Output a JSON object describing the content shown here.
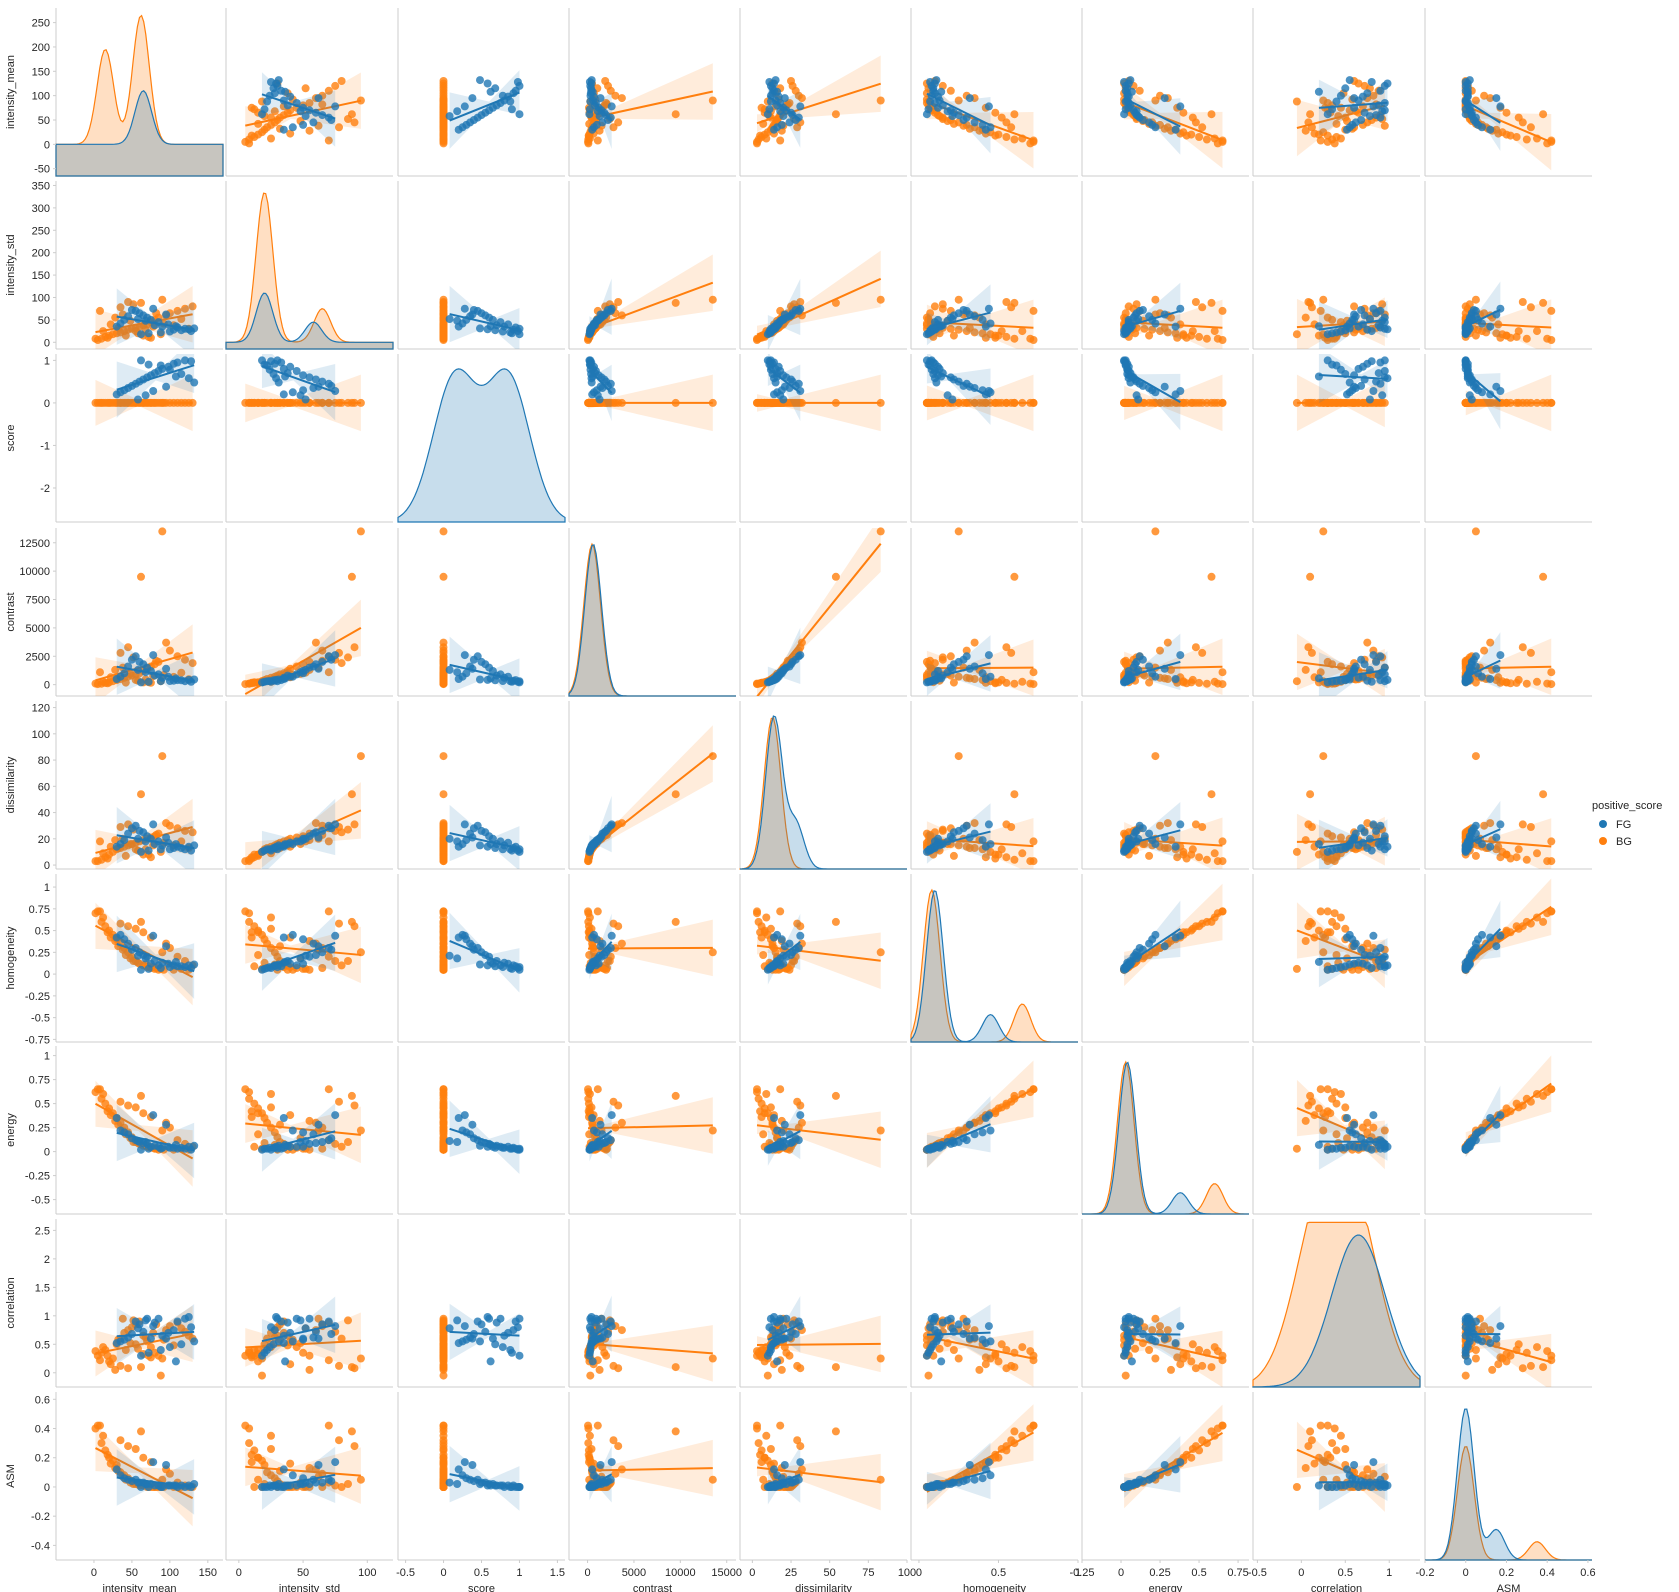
{
  "chart_data": {
    "type": "scatter",
    "title": "",
    "variables": [
      "intensity_mean",
      "intensity_std",
      "score",
      "contrast",
      "dissimilarity",
      "homogeneity",
      "energy",
      "correlation",
      "ASM"
    ],
    "hue": "positive_score",
    "legend_position": "right",
    "grid": false,
    "series": [
      {
        "name": "FG",
        "color": "#1f77b4"
      },
      {
        "name": "BG",
        "color": "#ff7f0e"
      }
    ],
    "axes": {
      "intensity_mean": {
        "lim": [
          -50,
          170
        ],
        "ticks": [
          -50,
          0,
          50,
          100,
          150,
          200,
          250
        ],
        "xticks": [
          0,
          50,
          100,
          150
        ]
      },
      "intensity_std": {
        "lim": [
          -10,
          120
        ],
        "ticks": [
          0,
          50,
          100,
          150,
          200,
          250,
          300,
          350
        ],
        "xticks": [
          0,
          50,
          100
        ]
      },
      "score": {
        "lim": [
          -0.6,
          1.6
        ],
        "ticks": [
          -2,
          -1,
          0,
          1
        ],
        "xticks": [
          -0.5,
          0.0,
          0.5,
          1.0,
          1.5
        ]
      },
      "contrast": {
        "lim": [
          -2000,
          16000
        ],
        "ticks": [
          0,
          2500,
          5000,
          7500,
          10000,
          12500
        ],
        "xticks": [
          0,
          5000,
          10000,
          15000
        ]
      },
      "dissimilarity": {
        "lim": [
          -8,
          100
        ],
        "ticks": [
          0,
          20,
          40,
          60,
          80,
          100,
          120
        ],
        "xticks": [
          0,
          25,
          50,
          75,
          100
        ]
      },
      "homogeneity": {
        "lim": [
          -0.05,
          1.0
        ],
        "ticks": [
          -0.75,
          -0.5,
          -0.25,
          0.0,
          0.25,
          0.5,
          0.75,
          1.0
        ],
        "xticks": [
          0.0,
          0.5,
          1.0
        ]
      },
      "energy": {
        "lim": [
          -0.25,
          0.82
        ],
        "ticks": [
          -0.5,
          -0.25,
          0.0,
          0.25,
          0.5,
          0.75,
          1.0
        ],
        "xticks": [
          -0.25,
          0.0,
          0.25,
          0.5,
          0.75
        ]
      },
      "correlation": {
        "lim": [
          -0.55,
          1.35
        ],
        "ticks": [
          0.0,
          0.5,
          1.0,
          1.5,
          2.0,
          2.5
        ],
        "xticks": [
          -0.5,
          0.0,
          0.5,
          1.0
        ]
      },
      "ASM": {
        "lim": [
          -0.2,
          0.62
        ],
        "ticks": [
          -0.4,
          -0.2,
          0.0,
          0.2,
          0.4,
          0.6
        ],
        "xticks": [
          -0.2,
          0.0,
          0.2,
          0.4,
          0.6
        ]
      }
    },
    "row_ylims": {
      "intensity_mean": [
        -65,
        280
      ],
      "intensity_std": [
        -15,
        360
      ],
      "score": [
        -2.8,
        1.15
      ],
      "contrast": [
        -1000,
        13800
      ],
      "dissimilarity": [
        -3,
        125
      ],
      "homogeneity": [
        -0.78,
        1.15
      ],
      "energy": [
        -0.65,
        1.1
      ],
      "correlation": [
        -0.25,
        2.7
      ],
      "ASM": [
        -0.5,
        0.65
      ]
    },
    "points": {
      "FG": [
        [
          120,
          30,
          1.0,
          300,
          12,
          0.08,
          0.03,
          0.95,
          0.0
        ],
        [
          128,
          25,
          0.98,
          250,
          11,
          0.07,
          0.02,
          0.8,
          0.0
        ],
        [
          110,
          33,
          0.95,
          400,
          14,
          0.09,
          0.03,
          0.9,
          0.0
        ],
        [
          105,
          28,
          0.92,
          350,
          13,
          0.1,
          0.04,
          0.75,
          0.01
        ],
        [
          98,
          40,
          0.85,
          700,
          17,
          0.12,
          0.05,
          0.7,
          0.01
        ],
        [
          90,
          35,
          0.8,
          600,
          15,
          0.13,
          0.04,
          0.65,
          0.0
        ],
        [
          85,
          45,
          0.75,
          900,
          18,
          0.1,
          0.05,
          0.95,
          0.01
        ],
        [
          80,
          38,
          0.7,
          800,
          16,
          0.15,
          0.06,
          0.88,
          0.01
        ],
        [
          75,
          50,
          0.65,
          1200,
          20,
          0.12,
          0.05,
          0.6,
          0.02
        ],
        [
          70,
          55,
          0.6,
          1500,
          22,
          0.2,
          0.08,
          0.95,
          0.02
        ],
        [
          65,
          60,
          0.55,
          1800,
          25,
          0.22,
          0.09,
          0.72,
          0.03
        ],
        [
          60,
          65,
          0.5,
          2000,
          26,
          0.25,
          0.1,
          0.85,
          0.03
        ],
        [
          55,
          70,
          0.45,
          2500,
          30,
          0.3,
          0.12,
          0.9,
          0.05
        ],
        [
          50,
          72,
          0.4,
          2200,
          28,
          0.28,
          0.14,
          0.68,
          0.04
        ],
        [
          45,
          58,
          0.35,
          1600,
          24,
          0.35,
          0.18,
          0.62,
          0.05
        ],
        [
          40,
          50,
          0.3,
          1000,
          19,
          0.4,
          0.2,
          0.58,
          0.06
        ],
        [
          35,
          42,
          0.25,
          700,
          16,
          0.45,
          0.22,
          0.55,
          0.08
        ],
        [
          30,
          35,
          0.2,
          500,
          14,
          0.42,
          0.35,
          0.52,
          0.12
        ],
        [
          62,
          18,
          1.0,
          200,
          10,
          0.05,
          0.02,
          0.3,
          0.0
        ],
        [
          72,
          20,
          0.9,
          250,
          11,
          0.06,
          0.03,
          0.35,
          0.0
        ],
        [
          88,
          22,
          0.88,
          300,
          12,
          0.07,
          0.03,
          0.4,
          0.0
        ],
        [
          100,
          24,
          0.78,
          320,
          12,
          0.08,
          0.04,
          0.45,
          0.01
        ],
        [
          115,
          27,
          0.68,
          380,
          13,
          0.09,
          0.04,
          0.5,
          0.01
        ],
        [
          125,
          29,
          0.58,
          420,
          14,
          0.1,
          0.05,
          0.98,
          0.01
        ],
        [
          132,
          31,
          0.48,
          450,
          15,
          0.11,
          0.06,
          0.55,
          0.02
        ],
        [
          95,
          62,
          0.38,
          1400,
          21,
          0.32,
          0.28,
          0.6,
          0.15
        ],
        [
          78,
          75,
          0.28,
          2600,
          31,
          0.44,
          0.38,
          0.82,
          0.17
        ],
        [
          68,
          48,
          0.18,
          1100,
          18,
          0.18,
          0.1,
          0.92,
          0.02
        ],
        [
          58,
          52,
          0.08,
          1300,
          20,
          0.21,
          0.11,
          0.78,
          0.03
        ],
        [
          108,
          36,
          0.62,
          550,
          16,
          0.14,
          0.07,
          0.2,
          0.01
        ]
      ],
      "BG": [
        [
          5,
          5,
          0.0,
          50,
          3,
          0.72,
          0.65,
          0.3,
          0.42
        ],
        [
          10,
          8,
          0.0,
          80,
          4,
          0.6,
          0.55,
          0.35,
          0.3
        ],
        [
          15,
          12,
          0.0,
          150,
          6,
          0.55,
          0.5,
          0.4,
          0.25
        ],
        [
          20,
          15,
          0.0,
          200,
          8,
          0.5,
          0.45,
          0.2,
          0.2
        ],
        [
          25,
          18,
          0.0,
          300,
          10,
          0.45,
          0.4,
          0.25,
          0.18
        ],
        [
          30,
          20,
          0.0,
          400,
          12,
          0.4,
          0.35,
          0.5,
          0.15
        ],
        [
          35,
          22,
          0.0,
          500,
          13,
          0.35,
          0.3,
          0.6,
          0.1
        ],
        [
          40,
          25,
          0.0,
          600,
          14,
          0.3,
          0.25,
          0.7,
          0.08
        ],
        [
          45,
          28,
          0.0,
          700,
          15,
          0.25,
          0.2,
          0.75,
          0.06
        ],
        [
          50,
          30,
          0.0,
          800,
          16,
          0.2,
          0.15,
          0.8,
          0.04
        ],
        [
          55,
          32,
          0.0,
          900,
          17,
          0.15,
          0.1,
          0.85,
          0.02
        ],
        [
          60,
          35,
          0.0,
          1000,
          18,
          0.12,
          0.08,
          0.9,
          0.01
        ],
        [
          65,
          38,
          0.0,
          1200,
          19,
          0.1,
          0.06,
          0.65,
          0.01
        ],
        [
          70,
          40,
          0.0,
          1400,
          20,
          0.08,
          0.05,
          0.55,
          0.0
        ],
        [
          75,
          45,
          0.0,
          1600,
          21,
          0.07,
          0.04,
          0.45,
          0.0
        ],
        [
          80,
          50,
          0.0,
          1800,
          22,
          0.06,
          0.03,
          0.35,
          0.0
        ],
        [
          85,
          55,
          0.0,
          2000,
          24,
          0.05,
          0.02,
          0.3,
          0.0
        ],
        [
          90,
          95,
          0.0,
          13500,
          83,
          0.25,
          0.22,
          0.25,
          0.05
        ],
        [
          62,
          88,
          0.0,
          9500,
          54,
          0.6,
          0.58,
          0.1,
          0.38
        ],
        [
          95,
          60,
          0.0,
          3700,
          32,
          0.35,
          0.3,
          0.75,
          0.12
        ],
        [
          100,
          65,
          0.0,
          3000,
          30,
          0.3,
          0.25,
          0.82,
          0.09
        ],
        [
          110,
          70,
          0.0,
          2500,
          28,
          0.2,
          0.12,
          0.88,
          0.03
        ],
        [
          120,
          75,
          0.0,
          2200,
          26,
          0.15,
          0.08,
          0.72,
          0.01
        ],
        [
          130,
          80,
          0.0,
          1900,
          25,
          0.1,
          0.05,
          0.6,
          0.0
        ],
        [
          8,
          70,
          0.0,
          1100,
          18,
          0.72,
          0.65,
          0.22,
          0.42
        ],
        [
          12,
          25,
          0.0,
          250,
          9,
          0.65,
          0.6,
          0.45,
          0.35
        ],
        [
          18,
          10,
          0.0,
          120,
          5,
          0.48,
          0.42,
          0.3,
          0.22
        ],
        [
          22,
          40,
          0.0,
          650,
          14,
          0.42,
          0.38,
          0.15,
          0.16
        ],
        [
          28,
          55,
          0.0,
          1300,
          19,
          0.38,
          0.32,
          0.05,
          0.13
        ],
        [
          32,
          32,
          0.0,
          550,
          13,
          0.32,
          0.28,
          0.58,
          0.11
        ],
        [
          38,
          62,
          0.0,
          1500,
          20,
          0.28,
          0.22,
          0.95,
          0.07
        ],
        [
          42,
          15,
          0.0,
          180,
          7,
          0.22,
          0.18,
          0.4,
          0.05
        ],
        [
          48,
          48,
          0.0,
          950,
          16,
          0.18,
          0.14,
          0.52,
          0.03
        ],
        [
          52,
          85,
          0.0,
          2400,
          27,
          0.15,
          0.1,
          0.92,
          0.02
        ],
        [
          58,
          20,
          0.0,
          350,
          11,
          0.13,
          0.09,
          0.42,
          0.02
        ],
        [
          68,
          28,
          0.0,
          450,
          12,
          0.11,
          0.07,
          0.62,
          0.01
        ],
        [
          72,
          12,
          0.0,
          220,
          8,
          0.09,
          0.05,
          0.3,
          0.0
        ],
        [
          78,
          35,
          0.0,
          750,
          15,
          0.08,
          0.04,
          0.7,
          0.0
        ],
        [
          82,
          65,
          0.0,
          2100,
          23,
          0.07,
          0.03,
          0.85,
          0.0
        ],
        [
          88,
          18,
          0.0,
          300,
          10,
          0.06,
          0.03,
          -0.05,
          0.0
        ],
        [
          92,
          42,
          0.0,
          850,
          17,
          0.05,
          0.02,
          0.58,
          0.0
        ],
        [
          105,
          38,
          0.0,
          680,
          15,
          0.05,
          0.02,
          0.48,
          0.0
        ],
        [
          115,
          52,
          0.0,
          1050,
          18,
          0.06,
          0.03,
          0.78,
          0.0
        ],
        [
          125,
          30,
          0.0,
          480,
          13,
          0.05,
          0.02,
          0.65,
          0.0
        ],
        [
          2,
          8,
          0.0,
          90,
          3,
          0.7,
          0.62,
          0.38,
          0.4
        ],
        [
          35,
          78,
          0.0,
          2800,
          29,
          0.58,
          0.52,
          0.12,
          0.32
        ],
        [
          45,
          90,
          0.0,
          3300,
          31,
          0.55,
          0.48,
          0.08,
          0.28
        ],
        [
          55,
          25,
          0.0,
          420,
          12,
          0.52,
          0.46,
          0.5,
          0.26
        ],
        [
          65,
          15,
          0.0,
          200,
          8,
          0.48,
          0.4,
          0.33,
          0.2
        ],
        [
          75,
          10,
          0.0,
          160,
          6,
          0.42,
          0.36,
          0.27,
          0.17
        ]
      ]
    },
    "diag_kde_peaks": {
      "intensity_mean": {
        "FG": [
          [
            65,
            110
          ]
        ],
        "BG": [
          [
            15,
            195
          ],
          [
            62,
            265
          ]
        ]
      },
      "intensity_std": {
        "FG": [
          [
            20,
            110
          ],
          [
            58,
            45
          ]
        ],
        "BG": [
          [
            20,
            335
          ],
          [
            65,
            75
          ]
        ]
      },
      "score": {
        "FG": [
          [
            0.15,
            0.95
          ],
          [
            0.85,
            0.95
          ]
        ]
      },
      "contrast": {
        "FG": [
          [
            600,
            1.0
          ]
        ],
        "BG": [
          [
            500,
            1.0
          ]
        ]
      },
      "dissimilarity": {
        "FG": [
          [
            14,
            1.0
          ],
          [
            28,
            0.3
          ]
        ],
        "BG": [
          [
            13,
            1.0
          ]
        ]
      },
      "homogeneity": {
        "FG": [
          [
            0.1,
            1.0
          ],
          [
            0.45,
            0.18
          ]
        ],
        "BG": [
          [
            0.08,
            1.0
          ],
          [
            0.65,
            0.25
          ]
        ]
      },
      "energy": {
        "FG": [
          [
            0.04,
            1.0
          ],
          [
            0.38,
            0.14
          ]
        ],
        "BG": [
          [
            0.03,
            1.0
          ],
          [
            0.6,
            0.2
          ]
        ]
      },
      "correlation": {
        "FG": [
          [
            0.65,
            1.0
          ]
        ],
        "BG": [
          [
            0.2,
            0.95
          ],
          [
            0.6,
            1.0
          ]
        ]
      },
      "ASM": {
        "FG": [
          [
            0.0,
            1.0
          ],
          [
            0.15,
            0.2
          ]
        ],
        "BG": [
          [
            0.0,
            0.75
          ],
          [
            0.35,
            0.12
          ]
        ]
      }
    }
  }
}
